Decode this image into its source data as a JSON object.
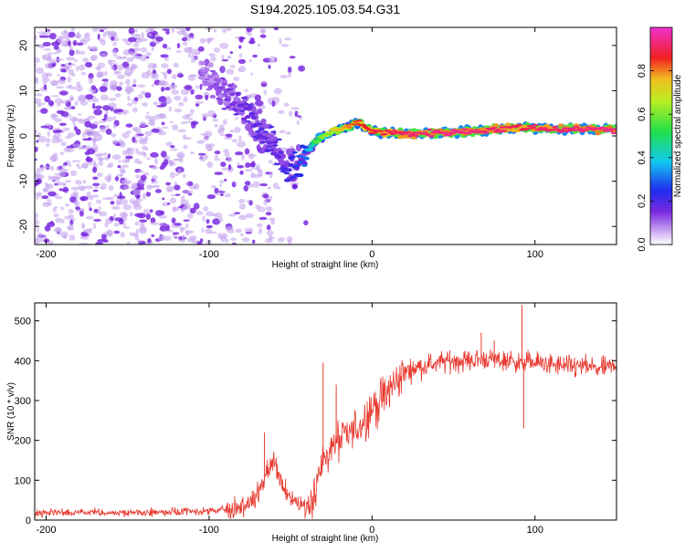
{
  "figure": {
    "title": "S194.2025.105.03.54.G31"
  },
  "chart_data": [
    {
      "type": "heatmap",
      "name": "spectrogram",
      "xlabel": "Height of straight line (km)",
      "ylabel": "Frequency (Hz)",
      "xlim": [
        -207,
        150
      ],
      "ylim": [
        -24,
        24
      ],
      "xticks": [
        -200,
        -100,
        0,
        100
      ],
      "yticks": [
        -20,
        -10,
        0,
        10,
        20
      ],
      "colorbar": {
        "label": "Normalized spectral amplitude",
        "range": [
          0,
          1
        ],
        "ticks": [
          0.0,
          0.2,
          0.4,
          0.6,
          0.8
        ],
        "colormap": "rainbow (white-purple-blue-cyan-green-yellow-red-magenta)"
      },
      "ridge": [
        {
          "x": -105,
          "y": 14,
          "a": 0.1
        },
        {
          "x": -90,
          "y": 10,
          "a": 0.15
        },
        {
          "x": -80,
          "y": 6,
          "a": 0.18
        },
        {
          "x": -70,
          "y": 2,
          "a": 0.2
        },
        {
          "x": -60,
          "y": -2,
          "a": 0.2
        },
        {
          "x": -53,
          "y": -8,
          "a": 0.22
        },
        {
          "x": -42,
          "y": -5,
          "a": 0.3
        },
        {
          "x": -35,
          "y": -1,
          "a": 0.55
        },
        {
          "x": -25,
          "y": 1,
          "a": 0.7
        },
        {
          "x": -15,
          "y": 2,
          "a": 0.8
        },
        {
          "x": -8,
          "y": 3,
          "a": 0.85
        },
        {
          "x": 0,
          "y": 1,
          "a": 0.88
        },
        {
          "x": 20,
          "y": 0.5,
          "a": 0.92
        },
        {
          "x": 50,
          "y": 0.8,
          "a": 0.95
        },
        {
          "x": 80,
          "y": 1.5,
          "a": 0.92
        },
        {
          "x": 90,
          "y": 2,
          "a": 0.9
        },
        {
          "x": 110,
          "y": 1.5,
          "a": 0.92
        },
        {
          "x": 150,
          "y": 1.5,
          "a": 0.95
        }
      ]
    },
    {
      "type": "line",
      "name": "snr",
      "xlabel": "Height of straight line (km)",
      "ylabel": "SNR (10 * v/v)",
      "xlim": [
        -207,
        150
      ],
      "ylim": [
        0,
        545
      ],
      "xticks": [
        -200,
        -100,
        0,
        100
      ],
      "yticks": [
        0,
        100,
        200,
        300,
        400,
        500
      ],
      "color": "#e8392f",
      "series": [
        {
          "x": [
            -207,
            -180,
            -150,
            -120,
            -100,
            -85,
            -75,
            -70,
            -65,
            -60,
            -58,
            -55,
            -50,
            -45,
            -40,
            -35,
            -30,
            -25,
            -20,
            -15,
            -10,
            -5,
            0,
            5,
            10,
            15,
            20,
            25,
            30,
            40,
            50,
            60,
            70,
            80,
            88,
            92,
            95,
            100,
            110,
            120,
            130,
            140,
            150
          ],
          "y": [
            18,
            18,
            18,
            20,
            22,
            28,
            40,
            70,
            110,
            150,
            120,
            80,
            60,
            40,
            35,
            70,
            150,
            180,
            200,
            210,
            230,
            250,
            280,
            300,
            320,
            350,
            370,
            380,
            385,
            395,
            400,
            400,
            405,
            400,
            400,
            390,
            400,
            395,
            390,
            385,
            385,
            380,
            385
          ]
        }
      ],
      "spikes": [
        {
          "x": -66,
          "y": 220
        },
        {
          "x": -30,
          "y": 395
        },
        {
          "x": -22,
          "y": 340
        },
        {
          "x": 67,
          "y": 470
        },
        {
          "x": 75,
          "y": 450
        },
        {
          "x": 92,
          "y": 540
        },
        {
          "x": 93,
          "y": 230
        }
      ]
    }
  ]
}
